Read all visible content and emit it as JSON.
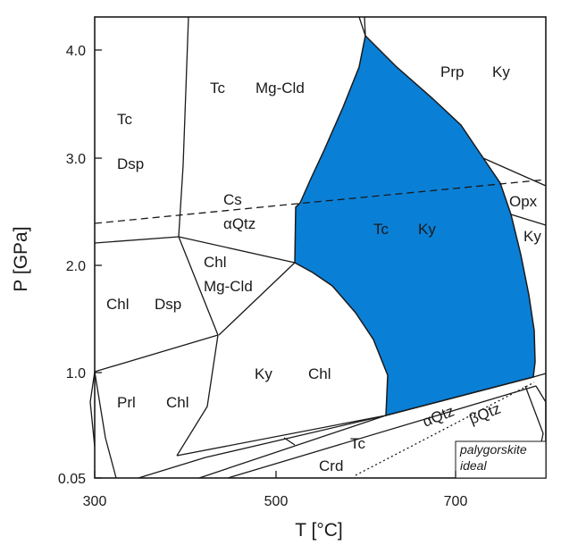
{
  "axes": {
    "x_title": "T [°C]",
    "y_title": "P [GPa]",
    "x_ticks": [
      "300",
      "500",
      "700"
    ],
    "y_ticks": [
      "4.0",
      "3.0",
      "2.0",
      "1.0",
      "0.05"
    ]
  },
  "fields": {
    "tc_dsp_top": {
      "a": "Tc",
      "b": "Dsp"
    },
    "tc_mgcld": {
      "a": "Tc",
      "b": "Mg-Cld"
    },
    "prp_ky": {
      "a": "Prp",
      "b": "Ky"
    },
    "cs_aqtz": {
      "a": "Cs",
      "b": "αQtz"
    },
    "tc_ky": {
      "a": "Tc",
      "b": "Ky"
    },
    "opx_ky": {
      "a": "Opx",
      "b": "Ky"
    },
    "chl_dsp": {
      "a": "Chl",
      "b": "Dsp"
    },
    "chl_mgcld": {
      "a": "Chl",
      "b": "Mg-Cld"
    },
    "ky_chl": {
      "a": "Ky",
      "b": "Chl"
    },
    "prl_chl": {
      "a": "Prl",
      "b": "Chl"
    },
    "tc_crd": {
      "a": "Tc",
      "b": "Crd"
    },
    "qtz": {
      "alpha": "αQtz",
      "beta": "βQtz"
    },
    "palygorskite": {
      "line1": "palygorskite",
      "line2": "ideal"
    }
  },
  "colors": {
    "stability_field": "#0a7fd6",
    "lines": "#1a1a1a"
  }
}
